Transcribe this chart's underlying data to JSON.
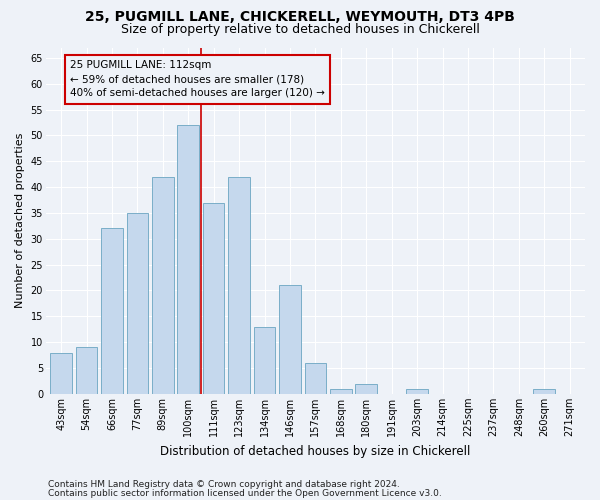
{
  "title1": "25, PUGMILL LANE, CHICKERELL, WEYMOUTH, DT3 4PB",
  "title2": "Size of property relative to detached houses in Chickerell",
  "xlabel": "Distribution of detached houses by size in Chickerell",
  "ylabel": "Number of detached properties",
  "categories": [
    "43sqm",
    "54sqm",
    "66sqm",
    "77sqm",
    "89sqm",
    "100sqm",
    "111sqm",
    "123sqm",
    "134sqm",
    "146sqm",
    "157sqm",
    "168sqm",
    "180sqm",
    "191sqm",
    "203sqm",
    "214sqm",
    "225sqm",
    "237sqm",
    "248sqm",
    "260sqm",
    "271sqm"
  ],
  "values": [
    8,
    9,
    32,
    35,
    42,
    52,
    37,
    42,
    13,
    21,
    6,
    1,
    2,
    0,
    1,
    0,
    0,
    0,
    0,
    1,
    0
  ],
  "bar_color": "#c5d8ed",
  "bar_edge_color": "#7aaec8",
  "vline_x_index": 5.5,
  "vline_color": "#cc0000",
  "annotation_line1": "25 PUGMILL LANE: 112sqm",
  "annotation_line2": "← 59% of detached houses are smaller (178)",
  "annotation_line3": "40% of semi-detached houses are larger (120) →",
  "ylim": [
    0,
    67
  ],
  "yticks": [
    0,
    5,
    10,
    15,
    20,
    25,
    30,
    35,
    40,
    45,
    50,
    55,
    60,
    65
  ],
  "background_color": "#eef2f8",
  "grid_color": "#ffffff",
  "footer1": "Contains HM Land Registry data © Crown copyright and database right 2024.",
  "footer2": "Contains public sector information licensed under the Open Government Licence v3.0.",
  "title1_fontsize": 10,
  "title2_fontsize": 9,
  "xlabel_fontsize": 8.5,
  "ylabel_fontsize": 8,
  "tick_fontsize": 7,
  "annotation_fontsize": 7.5,
  "footer_fontsize": 6.5
}
